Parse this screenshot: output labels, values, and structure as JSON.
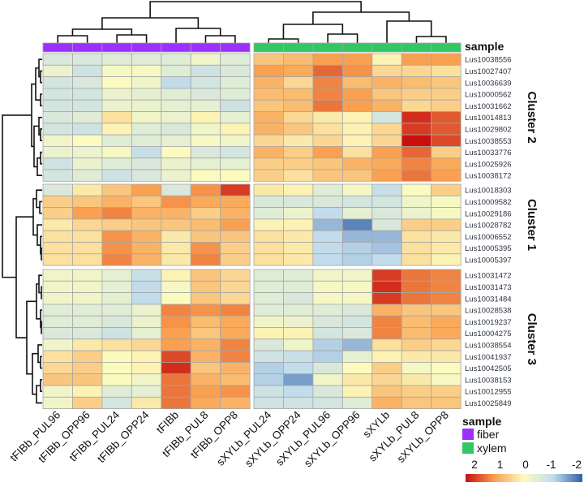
{
  "chart_data": {
    "type": "heatmap",
    "title": "",
    "columns": [
      "tFIBb_PUL96",
      "tFIBb_OPP96",
      "tFIBb_PUL24",
      "tFIBb_OPP24",
      "tFIBb",
      "tFIBb_PUL8",
      "tFIBb_OPP8",
      "sXYLb_PUL24",
      "sXYLb_OPP24",
      "sXYLb_PUL96",
      "sXYLb_OPP96",
      "sXYLb",
      "sXYLb_PUL8",
      "sXYLb_OPP8"
    ],
    "column_sample": [
      "fiber",
      "fiber",
      "fiber",
      "fiber",
      "fiber",
      "fiber",
      "fiber",
      "xylem",
      "xylem",
      "xylem",
      "xylem",
      "xylem",
      "xylem",
      "xylem"
    ],
    "annotation_title": "sample",
    "clusters": [
      {
        "label": "Cluster 2",
        "rows": [
          {
            "gene": "Lus10038556",
            "values": [
              -0.6,
              -0.6,
              -0.5,
              -0.5,
              -0.5,
              -0.2,
              -0.5,
              0.6,
              0.7,
              1.0,
              1.0,
              0.1,
              1.0,
              1.0
            ]
          },
          {
            "gene": "Lus10027407",
            "values": [
              -0.3,
              -0.8,
              -0.1,
              -0.1,
              -0.5,
              -0.8,
              -0.6,
              1.0,
              0.9,
              1.4,
              1.1,
              0.4,
              0.4,
              0.3
            ]
          },
          {
            "gene": "Lus10036639",
            "values": [
              -0.7,
              -0.6,
              0.0,
              -0.2,
              -1.0,
              -0.7,
              -0.5,
              0.8,
              0.4,
              1.2,
              0.7,
              0.8,
              0.7,
              0.6
            ]
          },
          {
            "gene": "Lus10000562",
            "values": [
              -0.7,
              -0.7,
              -0.3,
              -0.4,
              -0.5,
              -0.6,
              -0.5,
              0.7,
              0.7,
              1.2,
              1.0,
              0.6,
              0.5,
              0.5
            ]
          },
          {
            "gene": "Lus10031662",
            "values": [
              -0.7,
              -0.7,
              -0.3,
              -0.3,
              -0.4,
              -0.4,
              -0.8,
              0.6,
              0.7,
              1.3,
              1.0,
              0.8,
              0.4,
              0.5
            ]
          },
          {
            "gene": "Lus10014813",
            "values": [
              -0.6,
              -0.5,
              0.3,
              -0.2,
              -0.3,
              0.1,
              -0.4,
              0.8,
              0.4,
              0.2,
              0.1,
              -0.7,
              1.8,
              1.5
            ]
          },
          {
            "gene": "Lus10029802",
            "values": [
              -0.7,
              -0.8,
              0.1,
              -0.5,
              -0.6,
              -0.2,
              0.1,
              0.8,
              0.6,
              0.3,
              0.1,
              0.4,
              1.7,
              1.5
            ]
          },
          {
            "gene": "Lus10038553",
            "values": [
              -0.2,
              0.0,
              -0.5,
              -0.5,
              -0.4,
              -0.1,
              -0.2,
              0.4,
              0.2,
              0.4,
              0.1,
              0.4,
              2.0,
              1.6
            ]
          },
          {
            "gene": "Lus10033776",
            "values": [
              -0.3,
              -0.3,
              -0.1,
              -0.9,
              0.0,
              -0.6,
              -0.7,
              0.8,
              0.5,
              1.0,
              0.3,
              1.0,
              1.4,
              0.5
            ]
          },
          {
            "gene": "Lus10025926",
            "values": [
              -0.8,
              -0.3,
              -0.5,
              -0.6,
              -0.3,
              -0.4,
              -0.4,
              0.5,
              0.5,
              0.6,
              0.8,
              0.9,
              1.2,
              0.9
            ]
          },
          {
            "gene": "Lus10038172",
            "values": [
              -0.7,
              -0.5,
              -0.8,
              -0.6,
              -0.3,
              0.0,
              0.0,
              0.5,
              0.3,
              0.6,
              0.6,
              1.0,
              1.3,
              1.0
            ]
          }
        ]
      },
      {
        "label": "Cluster 1",
        "rows": [
          {
            "gene": "Lus10018303",
            "values": [
              -0.6,
              0.2,
              0.6,
              1.0,
              -0.6,
              1.1,
              1.7,
              0.2,
              0.1,
              -0.5,
              -0.1,
              -0.9,
              0.0,
              0.5
            ]
          },
          {
            "gene": "Lus10009582",
            "values": [
              0.5,
              0.6,
              0.8,
              0.6,
              1.1,
              0.9,
              0.9,
              -0.6,
              -0.6,
              -0.6,
              -0.7,
              -0.7,
              -0.2,
              -0.1
            ]
          },
          {
            "gene": "Lus10029186",
            "values": [
              0.5,
              1.0,
              1.2,
              0.8,
              0.8,
              0.5,
              0.8,
              -0.5,
              -0.3,
              -1.0,
              -0.4,
              -0.6,
              -0.3,
              -0.1
            ]
          },
          {
            "gene": "Lus10028782",
            "values": [
              0.2,
              0.4,
              0.5,
              0.6,
              0.6,
              0.7,
              1.0,
              0.1,
              0.1,
              -1.3,
              -1.7,
              -0.6,
              0.5,
              0.5
            ]
          },
          {
            "gene": "Lus10006552",
            "values": [
              0.3,
              0.3,
              1.1,
              0.8,
              0.2,
              0.6,
              0.6,
              0.3,
              0.2,
              -1.0,
              -1.3,
              -1.3,
              0.3,
              0.2
            ]
          },
          {
            "gene": "Lus10005395",
            "values": [
              0.3,
              0.3,
              1.1,
              0.8,
              0.2,
              1.1,
              0.5,
              0.3,
              0.2,
              -1.0,
              -1.1,
              -1.2,
              0.3,
              0.2
            ]
          },
          {
            "gene": "Lus10005397",
            "values": [
              0.3,
              0.3,
              1.2,
              0.8,
              0.2,
              1.2,
              0.5,
              0.3,
              0.2,
              -1.0,
              -1.1,
              -1.0,
              0.3,
              0.1
            ]
          }
        ]
      },
      {
        "label": "Cluster 3",
        "rows": [
          {
            "gene": "Lus10031472",
            "values": [
              -0.2,
              -0.2,
              -0.4,
              -0.9,
              0.1,
              0.6,
              0.4,
              -0.5,
              -0.5,
              -0.2,
              -0.2,
              1.7,
              1.3,
              1.2
            ]
          },
          {
            "gene": "Lus10031473",
            "values": [
              -0.2,
              -0.2,
              -0.4,
              -1.0,
              -0.1,
              0.6,
              0.4,
              -0.5,
              -0.5,
              -0.1,
              -0.1,
              1.8,
              1.3,
              1.2
            ]
          },
          {
            "gene": "Lus10031484",
            "values": [
              -0.2,
              -0.2,
              -0.4,
              -1.0,
              0.0,
              0.6,
              0.4,
              -0.5,
              -0.6,
              -0.1,
              -0.1,
              1.7,
              1.3,
              1.2
            ]
          },
          {
            "gene": "Lus10028538",
            "values": [
              -0.5,
              -0.5,
              -0.5,
              -0.3,
              1.2,
              1.1,
              1.2,
              -0.5,
              -0.5,
              -0.5,
              -0.6,
              0.8,
              0.6,
              0.6
            ]
          },
          {
            "gene": "Lus10019237",
            "values": [
              -0.5,
              -0.5,
              -0.6,
              -0.3,
              1.1,
              0.7,
              0.9,
              -0.2,
              -0.3,
              -0.6,
              -0.7,
              1.2,
              0.7,
              0.9
            ]
          },
          {
            "gene": "Lus10004275",
            "values": [
              -0.6,
              -0.6,
              -0.8,
              -0.4,
              1.0,
              0.6,
              0.9,
              0.1,
              0.1,
              -0.7,
              -0.6,
              1.2,
              0.7,
              0.9
            ]
          },
          {
            "gene": "Lus10038554",
            "values": [
              -0.2,
              0.2,
              0.3,
              0.4,
              1.0,
              0.8,
              1.2,
              -0.6,
              -0.2,
              -1.1,
              -1.3,
              0.3,
              0.5,
              0.4
            ]
          },
          {
            "gene": "Lus10041937",
            "values": [
              0.3,
              0.5,
              0.0,
              0.1,
              1.6,
              0.8,
              1.2,
              -0.8,
              -0.9,
              -1.1,
              -0.4,
              0.1,
              0.2,
              0.2
            ]
          },
          {
            "gene": "Lus10042505",
            "values": [
              0.4,
              0.5,
              0.0,
              0.1,
              1.8,
              0.6,
              0.8,
              -1.1,
              -1.0,
              -0.6,
              0.0,
              0.5,
              -0.1,
              0.0
            ]
          },
          {
            "gene": "Lus10038153",
            "values": [
              0.6,
              0.6,
              0.0,
              -0.2,
              1.3,
              0.8,
              0.7,
              -1.1,
              -1.5,
              -0.2,
              0.2,
              0.4,
              0.2,
              -0.1
            ]
          },
          {
            "gene": "Lus10012955",
            "values": [
              -0.2,
              0.1,
              -0.5,
              -0.4,
              1.3,
              1.0,
              1.1,
              -0.8,
              -1.0,
              -0.6,
              0.1,
              0.6,
              0.5,
              0.5
            ]
          },
          {
            "gene": "Lus10025849",
            "values": [
              -0.2,
              0.5,
              -0.7,
              0.2,
              1.3,
              0.9,
              0.8,
              -0.8,
              -0.8,
              -0.7,
              -0.5,
              0.8,
              0.6,
              0.6
            ]
          }
        ]
      }
    ],
    "legend": {
      "title": "sample",
      "entries": [
        {
          "label": "fiber",
          "color": "#9b30ff"
        },
        {
          "label": "xylem",
          "color": "#33c763"
        }
      ],
      "colorbar_ticks": [
        "2",
        "1",
        "0",
        "-1",
        "-2"
      ],
      "colorbar_range": [
        2,
        -2
      ],
      "colorbar_stops": [
        "#c8100e",
        "#f9a150",
        "#fcfbbf",
        "#c2dcec",
        "#2f5fa6"
      ]
    }
  }
}
